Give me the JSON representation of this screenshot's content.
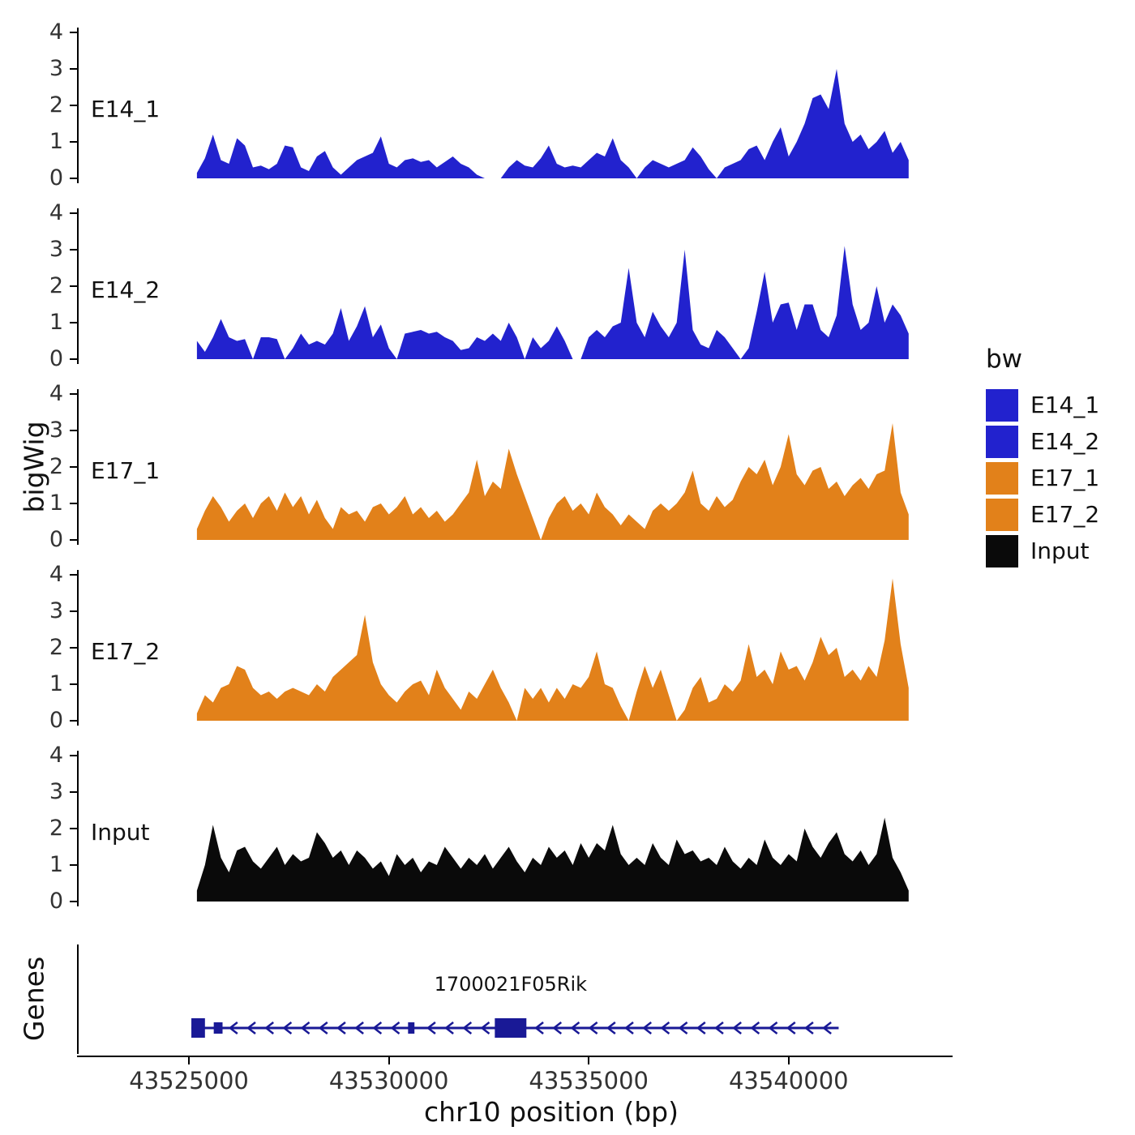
{
  "ylab": "bigWig",
  "genes_panel_label": "Genes",
  "xlabel": "chr10 position (bp)",
  "legend": {
    "title": "bw",
    "items": [
      {
        "label": "E14_1",
        "color": "#2222CE"
      },
      {
        "label": "E14_2",
        "color": "#2222CE"
      },
      {
        "label": "E17_1",
        "color": "#E2811A"
      },
      {
        "label": "E17_2",
        "color": "#E2811A"
      },
      {
        "label": "Input",
        "color": "#0A0A0A"
      }
    ]
  },
  "chart_data": {
    "type": "area",
    "title": "",
    "xlabel": "chr10 position (bp)",
    "ylabel": "bigWig",
    "xlim": [
      43522200,
      43544100
    ],
    "x_ticks": [
      43525000,
      43530000,
      43535000,
      43540000
    ],
    "ylim": [
      0,
      4
    ],
    "y_ticks": [
      0,
      1,
      2,
      3,
      4
    ],
    "x_start": 43525200,
    "x_step": 200,
    "series": [
      {
        "name": "E14_1",
        "color": "#2222CE",
        "values": [
          0.15,
          0.55,
          1.2,
          0.5,
          0.4,
          1.1,
          0.9,
          0.3,
          0.35,
          0.25,
          0.4,
          0.9,
          0.85,
          0.3,
          0.2,
          0.6,
          0.75,
          0.3,
          0.1,
          0.3,
          0.5,
          0.6,
          0.7,
          1.15,
          0.4,
          0.3,
          0.5,
          0.55,
          0.45,
          0.5,
          0.3,
          0.45,
          0.6,
          0.4,
          0.3,
          0.1,
          0,
          0,
          0,
          0.3,
          0.5,
          0.35,
          0.3,
          0.55,
          0.9,
          0.4,
          0.3,
          0.35,
          0.3,
          0.5,
          0.7,
          0.6,
          1.1,
          0.5,
          0.3,
          0,
          0.3,
          0.5,
          0.4,
          0.3,
          0.4,
          0.5,
          0.85,
          0.6,
          0.25,
          0,
          0.3,
          0.4,
          0.5,
          0.8,
          0.9,
          0.5,
          1.0,
          1.4,
          0.6,
          1.0,
          1.5,
          2.2,
          2.3,
          1.9,
          3.0,
          1.5,
          1.0,
          1.2,
          0.8,
          1.0,
          1.3,
          0.7,
          1.0,
          0.5
        ]
      },
      {
        "name": "E14_2",
        "color": "#2222CE",
        "values": [
          0.5,
          0.2,
          0.6,
          1.1,
          0.6,
          0.5,
          0.55,
          0,
          0.6,
          0.6,
          0.55,
          0,
          0.3,
          0.7,
          0.4,
          0.5,
          0.4,
          0.7,
          1.4,
          0.5,
          0.9,
          1.45,
          0.6,
          0.95,
          0.3,
          0,
          0.7,
          0.75,
          0.8,
          0.7,
          0.75,
          0.6,
          0.5,
          0.25,
          0.3,
          0.6,
          0.5,
          0.7,
          0.5,
          1.0,
          0.6,
          0,
          0.6,
          0.3,
          0.5,
          0.9,
          0.5,
          0,
          0,
          0.6,
          0.8,
          0.6,
          0.9,
          1.0,
          2.5,
          1.0,
          0.6,
          1.3,
          0.9,
          0.6,
          1.0,
          3.0,
          0.8,
          0.4,
          0.3,
          0.8,
          0.6,
          0.3,
          0,
          0.3,
          1.3,
          2.4,
          1.0,
          1.5,
          1.55,
          0.8,
          1.5,
          1.5,
          0.8,
          0.6,
          1.2,
          3.1,
          1.5,
          0.8,
          1.0,
          2.0,
          1.0,
          1.5,
          1.2,
          0.7
        ]
      },
      {
        "name": "E17_1",
        "color": "#E2811A",
        "values": [
          0.3,
          0.8,
          1.2,
          0.9,
          0.5,
          0.8,
          1.0,
          0.6,
          1.0,
          1.2,
          0.8,
          1.3,
          0.9,
          1.2,
          0.7,
          1.1,
          0.6,
          0.3,
          0.9,
          0.7,
          0.8,
          0.5,
          0.9,
          1.0,
          0.7,
          0.9,
          1.2,
          0.7,
          0.9,
          0.6,
          0.8,
          0.5,
          0.7,
          1.0,
          1.3,
          2.2,
          1.2,
          1.6,
          1.4,
          2.5,
          1.8,
          1.2,
          0.6,
          0,
          0.6,
          1.0,
          1.2,
          0.8,
          1.0,
          0.7,
          1.3,
          0.9,
          0.7,
          0.4,
          0.7,
          0.5,
          0.3,
          0.8,
          1.0,
          0.8,
          1.0,
          1.3,
          1.9,
          1.0,
          0.8,
          1.2,
          0.9,
          1.1,
          1.6,
          2.0,
          1.8,
          2.2,
          1.5,
          2.0,
          2.9,
          1.8,
          1.5,
          1.9,
          2.0,
          1.4,
          1.6,
          1.2,
          1.5,
          1.7,
          1.4,
          1.8,
          1.9,
          3.2,
          1.3,
          0.7
        ]
      },
      {
        "name": "E17_2",
        "color": "#E2811A",
        "values": [
          0.2,
          0.7,
          0.5,
          0.9,
          1.0,
          1.5,
          1.4,
          0.9,
          0.7,
          0.8,
          0.6,
          0.8,
          0.9,
          0.8,
          0.7,
          1.0,
          0.8,
          1.2,
          1.4,
          1.6,
          1.8,
          2.9,
          1.6,
          1.0,
          0.7,
          0.5,
          0.8,
          1.0,
          1.1,
          0.7,
          1.4,
          0.9,
          0.6,
          0.3,
          0.8,
          0.6,
          1.0,
          1.4,
          0.9,
          0.5,
          0,
          0.9,
          0.6,
          0.9,
          0.5,
          0.9,
          0.6,
          1.0,
          0.9,
          1.2,
          1.9,
          1.0,
          0.9,
          0.4,
          0,
          0.8,
          1.5,
          0.9,
          1.4,
          0.7,
          0,
          0.3,
          0.9,
          1.2,
          0.5,
          0.6,
          1.0,
          0.8,
          1.1,
          2.1,
          1.2,
          1.4,
          1.0,
          1.9,
          1.4,
          1.5,
          1.1,
          1.6,
          2.3,
          1.8,
          2.0,
          1.2,
          1.4,
          1.1,
          1.5,
          1.2,
          2.2,
          3.9,
          2.1,
          0.9
        ]
      },
      {
        "name": "Input",
        "color": "#0A0A0A",
        "values": [
          0.3,
          1.0,
          2.1,
          1.2,
          0.8,
          1.4,
          1.5,
          1.1,
          0.9,
          1.2,
          1.5,
          1.0,
          1.3,
          1.1,
          1.2,
          1.9,
          1.6,
          1.2,
          1.4,
          1.0,
          1.4,
          1.2,
          0.9,
          1.1,
          0.7,
          1.3,
          1.0,
          1.2,
          0.8,
          1.1,
          1.0,
          1.5,
          1.2,
          0.9,
          1.2,
          1.0,
          1.3,
          0.9,
          1.2,
          1.5,
          1.1,
          0.8,
          1.2,
          1.0,
          1.5,
          1.2,
          1.4,
          1.0,
          1.6,
          1.2,
          1.6,
          1.4,
          2.1,
          1.3,
          1.0,
          1.2,
          1.0,
          1.6,
          1.2,
          1.0,
          1.7,
          1.3,
          1.4,
          1.1,
          1.2,
          1.0,
          1.5,
          1.1,
          0.9,
          1.2,
          1.0,
          1.7,
          1.2,
          1.0,
          1.3,
          1.1,
          2.0,
          1.5,
          1.2,
          1.6,
          1.9,
          1.3,
          1.1,
          1.4,
          1.0,
          1.3,
          2.3,
          1.2,
          0.8,
          0.3
        ]
      }
    ],
    "gene": {
      "name": "1700021F05Rik",
      "strand": "-",
      "start": 43525060,
      "end": 43541250,
      "exons": [
        [
          43525060,
          43525400
        ],
        [
          43525620,
          43525840
        ],
        [
          43530480,
          43530640
        ],
        [
          43532650,
          43533440
        ]
      ],
      "color": "#191996"
    }
  }
}
